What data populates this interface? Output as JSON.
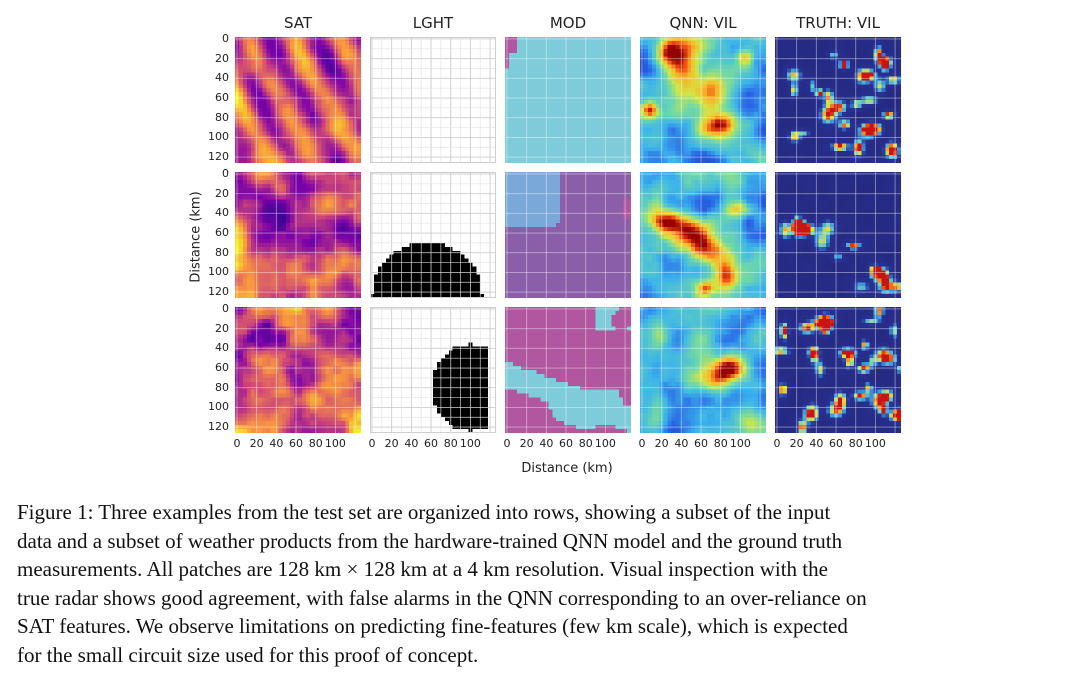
{
  "figure": {
    "columns": [
      "SAT",
      "LGHT",
      "MOD",
      "QNN: VIL",
      "TRUTH: VIL"
    ],
    "ylabel": "Distance (km)",
    "xlabel": "Distance (km)",
    "yticks": [
      "0",
      "20",
      "40",
      "60",
      "80",
      "100",
      "120"
    ],
    "xticks": [
      "0",
      "20",
      "40",
      "60",
      "80",
      "100"
    ],
    "rows": 3,
    "colormaps": {
      "SAT": "plasma",
      "LGHT": "binary",
      "MOD": "categorical",
      "QNN: VIL": "jet",
      "TRUTH: VIL": "jet"
    },
    "lightning_regions": [
      {
        "row": 1,
        "description": "none"
      },
      {
        "row": 2,
        "shape": "half-disc"
      },
      {
        "row": 3,
        "shape": "disc"
      }
    ],
    "mod_colors": [
      "#7ecbd9",
      "#8a5ea8",
      "#7aa8d8",
      "#b0579f"
    ]
  },
  "caption": {
    "lines": [
      "Figure 1: Three examples from the test set are organized into rows, showing a subset of the input",
      "data and a subset of weather products from the hardware-trained QNN model and the ground truth",
      "measurements. All patches are 128 km × 128 km at a 4 km resolution. Visual inspection with the",
      "true radar shows good agreement, with false alarms in the QNN corresponding to an over-reliance on",
      "SAT features. We observe limitations on predicting fine-features (few km scale), which is expected",
      "for the small circuit size used for this proof of concept."
    ]
  }
}
